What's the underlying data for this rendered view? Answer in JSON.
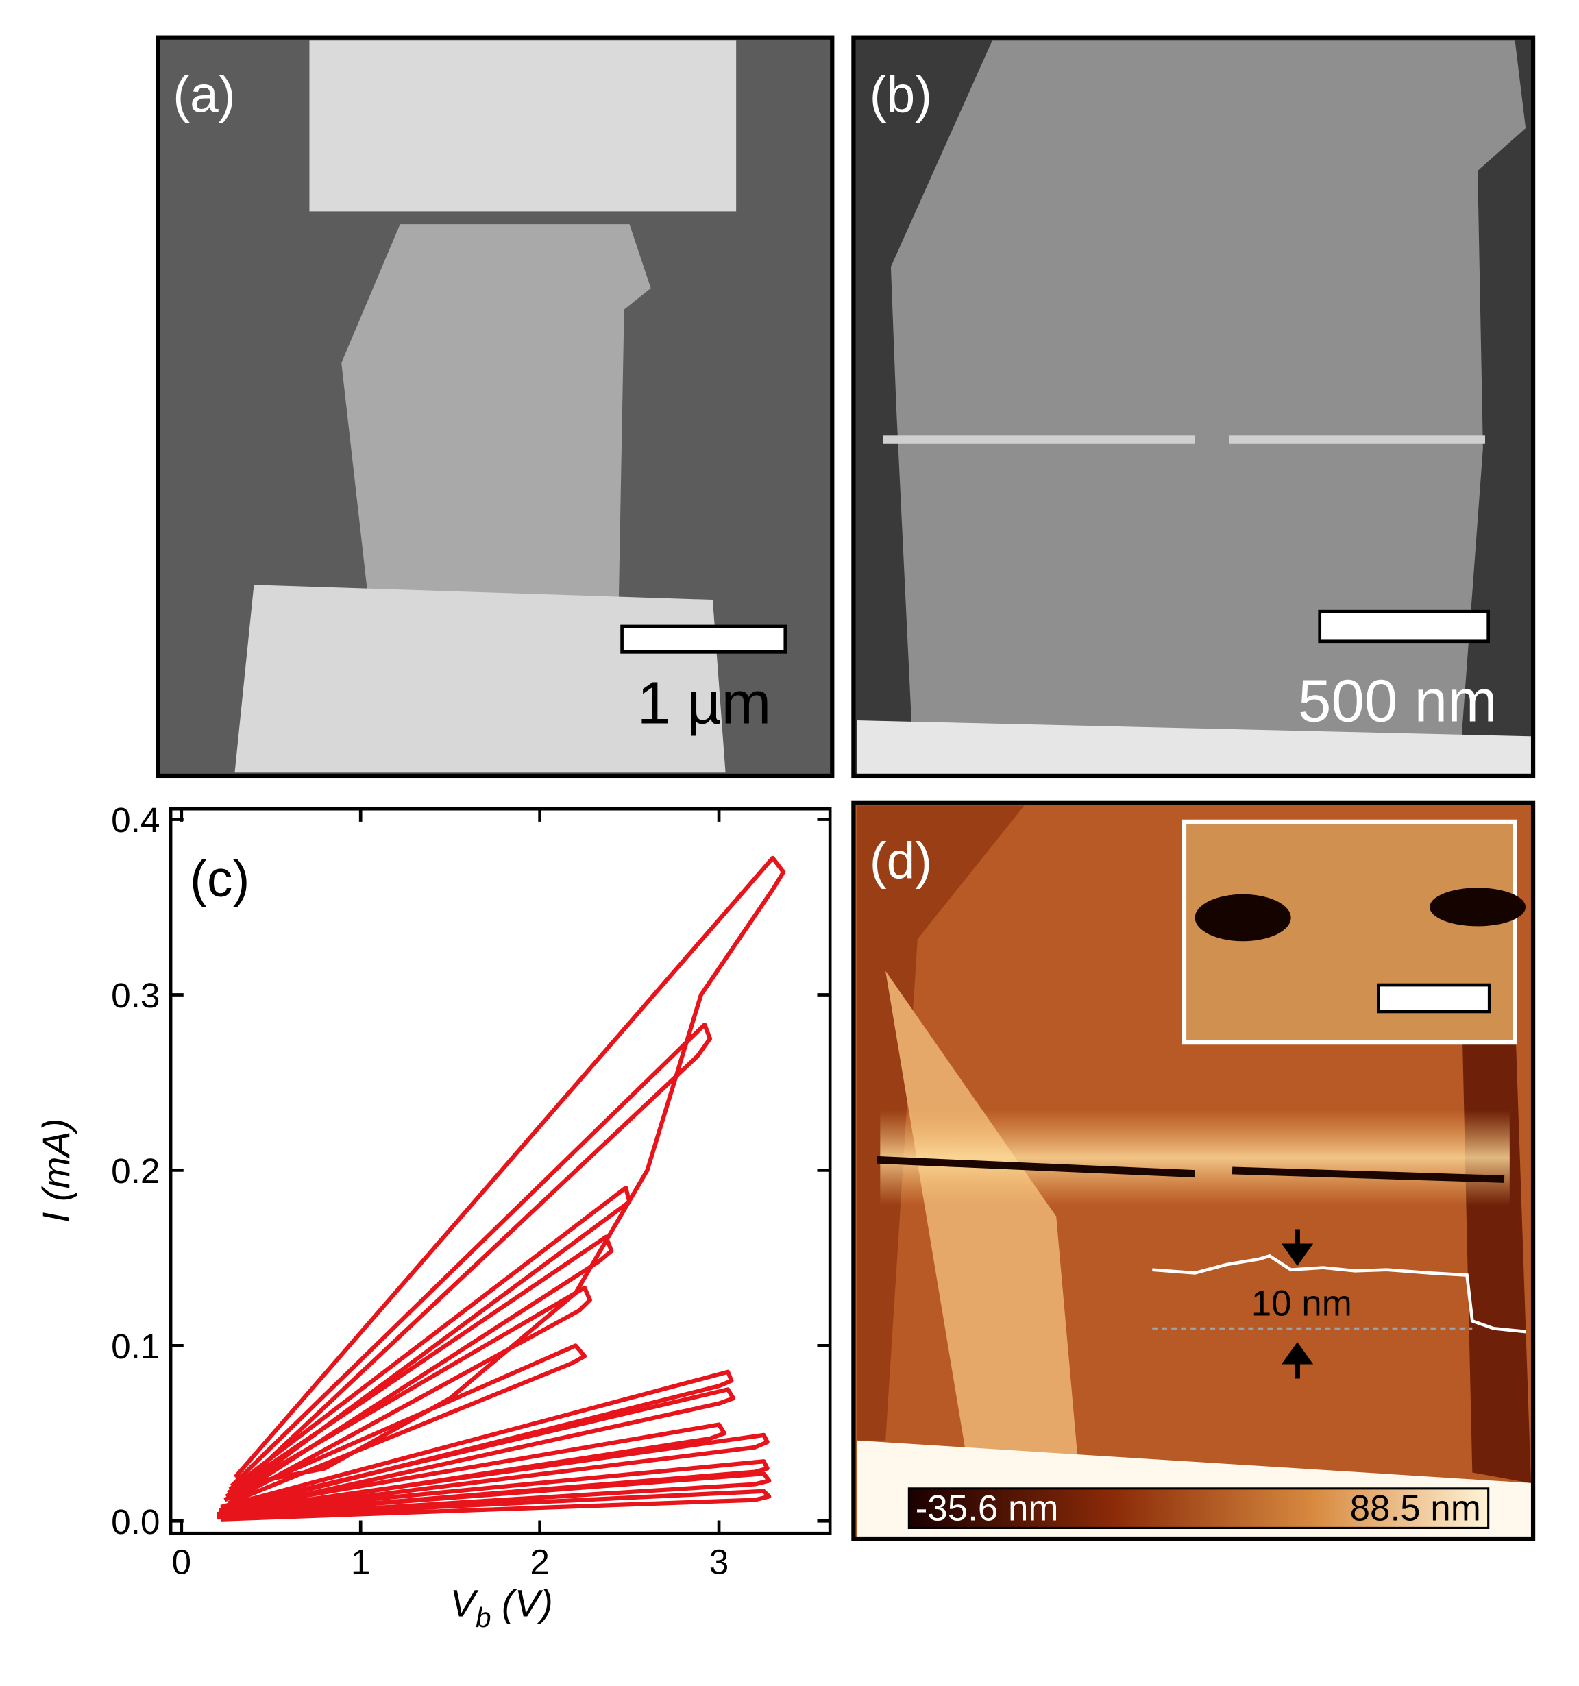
{
  "panels": {
    "a": {
      "label": "(a)",
      "scale_bar": "1 µm"
    },
    "b": {
      "label": "(b)",
      "scale_bar": "500 nm"
    },
    "d": {
      "label": "(d)",
      "profile_label": "10 nm",
      "colorbar_min": "-35.6 nm",
      "colorbar_max": "88.5 nm"
    }
  },
  "chart_data": {
    "type": "line",
    "label": "(c)",
    "x_label": {
      "symbol": "V",
      "subscript": "b",
      "unit": " (V)"
    },
    "y_label": {
      "symbol": "I",
      "unit": " (mA)"
    },
    "xlim": [
      -0.06,
      3.62
    ],
    "ylim": [
      -0.007,
      0.406
    ],
    "xticks": [
      0,
      1,
      2,
      3
    ],
    "yticks": [
      {
        "value": 0,
        "label": "0.0"
      },
      0.1,
      0.2,
      0.3,
      0.4
    ],
    "series": [
      {
        "color": "#e8141b",
        "x": [
          0.3,
          3.3,
          3.36,
          3.3,
          2.9,
          2.6,
          2.2,
          1.5,
          0.8,
          0.3
        ],
        "values": [
          0.025,
          0.378,
          0.37,
          0.36,
          0.3,
          0.2,
          0.13,
          0.07,
          0.03,
          0.02
        ]
      },
      {
        "color": "#e8141b",
        "x": [
          0.28,
          2.92,
          2.95,
          2.88,
          0.3
        ],
        "values": [
          0.02,
          0.283,
          0.275,
          0.265,
          0.017
        ]
      },
      {
        "color": "#e8141b",
        "x": [
          0.27,
          2.48,
          2.5,
          2.42,
          0.29
        ],
        "values": [
          0.018,
          0.19,
          0.182,
          0.176,
          0.015
        ]
      },
      {
        "color": "#e8141b",
        "x": [
          0.26,
          2.37,
          2.4,
          2.33,
          0.28
        ],
        "values": [
          0.016,
          0.162,
          0.154,
          0.148,
          0.013
        ]
      },
      {
        "color": "#e8141b",
        "x": [
          0.25,
          2.25,
          2.28,
          2.22,
          0.27
        ],
        "values": [
          0.014,
          0.133,
          0.126,
          0.12,
          0.011
        ]
      },
      {
        "color": "#e8141b",
        "x": [
          0.24,
          2.2,
          2.25,
          2.18,
          0.26
        ],
        "values": [
          0.012,
          0.1,
          0.094,
          0.09,
          0.01
        ]
      },
      {
        "color": "#e8141b",
        "x": [
          0.22,
          3.05,
          3.07,
          3.0,
          0.24
        ],
        "values": [
          0.008,
          0.085,
          0.08,
          0.077,
          0.006
        ]
      },
      {
        "color": "#e8141b",
        "x": [
          0.22,
          3.05,
          3.08,
          3.0,
          0.24
        ],
        "values": [
          0.007,
          0.075,
          0.07,
          0.067,
          0.005
        ]
      },
      {
        "color": "#e8141b",
        "x": [
          0.21,
          3.0,
          3.03,
          2.95,
          0.23
        ],
        "values": [
          0.006,
          0.055,
          0.05,
          0.047,
          0.004
        ]
      },
      {
        "color": "#e8141b",
        "x": [
          0.21,
          3.25,
          3.27,
          3.2,
          0.23
        ],
        "values": [
          0.005,
          0.049,
          0.045,
          0.042,
          0.004
        ]
      },
      {
        "color": "#e8141b",
        "x": [
          0.2,
          3.25,
          3.27,
          3.2,
          0.22
        ],
        "values": [
          0.004,
          0.034,
          0.03,
          0.028,
          0.003
        ]
      },
      {
        "color": "#e8141b",
        "x": [
          0.2,
          3.25,
          3.28,
          3.2,
          0.22
        ],
        "values": [
          0.003,
          0.027,
          0.023,
          0.021,
          0.002
        ]
      },
      {
        "color": "#e8141b",
        "x": [
          0.2,
          3.25,
          3.28,
          3.2,
          0.22
        ],
        "values": [
          0.002,
          0.017,
          0.014,
          0.012,
          0.001
        ]
      }
    ]
  }
}
